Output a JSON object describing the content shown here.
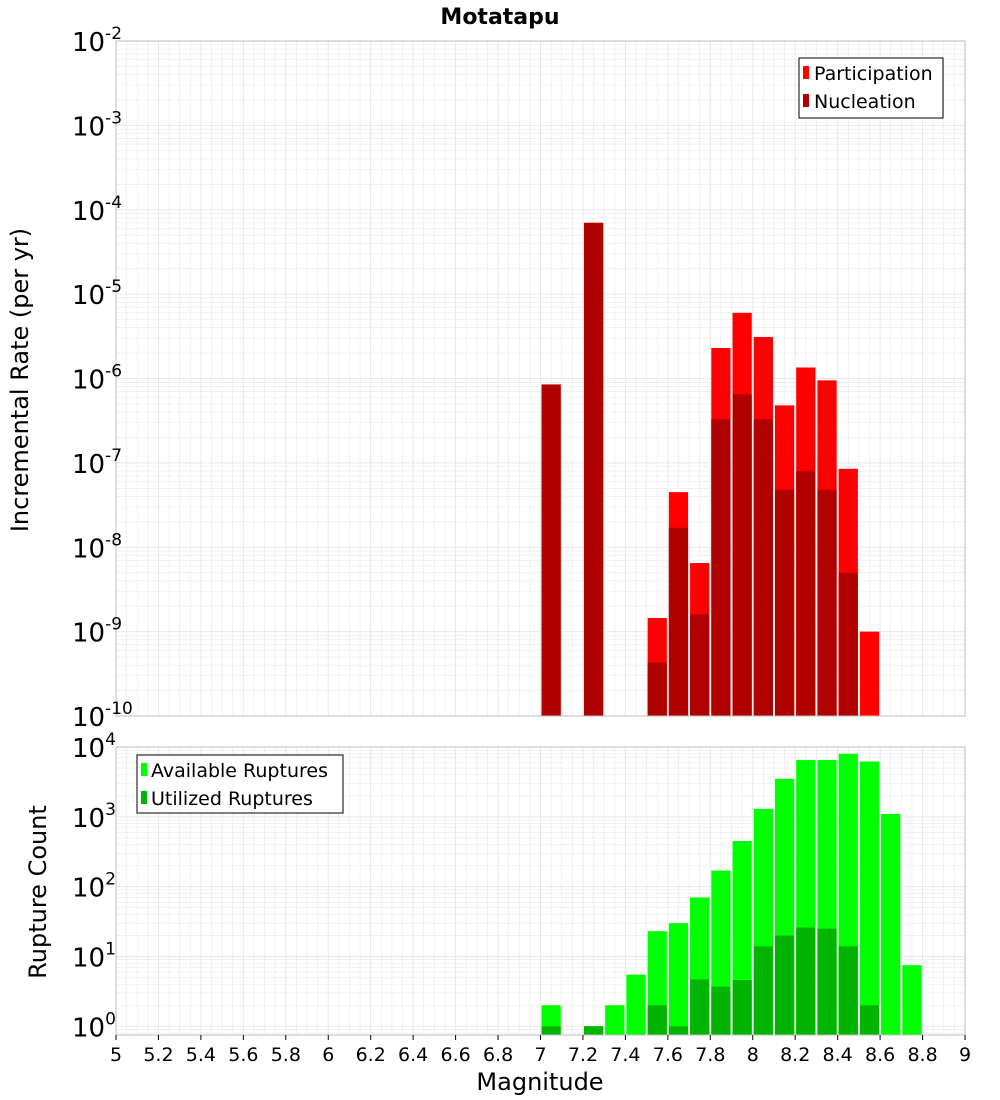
{
  "title": "Motatapu",
  "xlabel": "Magnitude",
  "colors": {
    "participation": "#ff0000",
    "nucleation": "#b00000",
    "available": "#00ff00",
    "utilized": "#00b400",
    "grid": "#e8e8e8",
    "frame": "#bdbdbd"
  },
  "chart_data": [
    {
      "type": "bar",
      "scale": "log",
      "ylabel": "Incremental Rate (per yr)",
      "xlim": [
        5,
        9
      ],
      "ylim": [
        1e-10,
        0.01
      ],
      "y_ticks": [
        {
          "base": "10",
          "exp": "-10"
        },
        {
          "base": "10",
          "exp": "-9"
        },
        {
          "base": "10",
          "exp": "-8"
        },
        {
          "base": "10",
          "exp": "-7"
        },
        {
          "base": "10",
          "exp": "-6"
        },
        {
          "base": "10",
          "exp": "-5"
        },
        {
          "base": "10",
          "exp": "-4"
        },
        {
          "base": "10",
          "exp": "-3"
        },
        {
          "base": "10",
          "exp": "-2"
        }
      ],
      "legend_position": "top-right",
      "grid": true,
      "bin_width": 0.1,
      "series": [
        {
          "name": "Participation",
          "color_key": "participation",
          "points": [
            {
              "x": 7.05,
              "y": 8.5e-07
            },
            {
              "x": 7.25,
              "y": 7e-05
            },
            {
              "x": 7.55,
              "y": 1.45e-09
            },
            {
              "x": 7.65,
              "y": 4.5e-08
            },
            {
              "x": 7.75,
              "y": 6.5e-09
            },
            {
              "x": 7.85,
              "y": 2.3e-06
            },
            {
              "x": 7.95,
              "y": 6e-06
            },
            {
              "x": 8.05,
              "y": 3.1e-06
            },
            {
              "x": 8.15,
              "y": 4.8e-07
            },
            {
              "x": 8.25,
              "y": 1.35e-06
            },
            {
              "x": 8.35,
              "y": 9.5e-07
            },
            {
              "x": 8.45,
              "y": 8.5e-08
            },
            {
              "x": 8.55,
              "y": 1e-09
            }
          ]
        },
        {
          "name": "Nucleation",
          "color_key": "nucleation",
          "points": [
            {
              "x": 7.05,
              "y": 8.5e-07
            },
            {
              "x": 7.25,
              "y": 7e-05
            },
            {
              "x": 7.55,
              "y": 4.3e-10
            },
            {
              "x": 7.65,
              "y": 1.7e-08
            },
            {
              "x": 7.75,
              "y": 1.6e-09
            },
            {
              "x": 7.85,
              "y": 3.3e-07
            },
            {
              "x": 7.95,
              "y": 6.5e-07
            },
            {
              "x": 8.05,
              "y": 3.3e-07
            },
            {
              "x": 8.15,
              "y": 4.8e-08
            },
            {
              "x": 8.25,
              "y": 8e-08
            },
            {
              "x": 8.35,
              "y": 4.8e-08
            },
            {
              "x": 8.45,
              "y": 5e-09
            }
          ]
        }
      ]
    },
    {
      "type": "bar",
      "scale": "log",
      "ylabel": "Rupture Count",
      "xlim": [
        5,
        9
      ],
      "ylim": [
        0.75,
        10000
      ],
      "y_ticks": [
        {
          "value": 1,
          "base": "10",
          "exp": "0"
        },
        {
          "value": 10,
          "base": "10",
          "exp": "1"
        },
        {
          "value": 100,
          "base": "10",
          "exp": "2"
        },
        {
          "value": 1000,
          "base": "10",
          "exp": "3"
        },
        {
          "value": 10000,
          "base": "10",
          "exp": "4"
        }
      ],
      "x_ticks": [
        "5",
        "5.2",
        "5.4",
        "5.6",
        "5.8",
        "6",
        "6.2",
        "6.4",
        "6.6",
        "6.8",
        "7",
        "7.2",
        "7.4",
        "7.6",
        "7.8",
        "8",
        "8.2",
        "8.4",
        "8.6",
        "8.8",
        "9"
      ],
      "legend_position": "top-left",
      "grid": true,
      "bin_width": 0.1,
      "series": [
        {
          "name": "Available Ruptures",
          "color_key": "available",
          "points": [
            {
              "x": 7.05,
              "y": 2
            },
            {
              "x": 7.25,
              "y": 1
            },
            {
              "x": 7.35,
              "y": 2
            },
            {
              "x": 7.45,
              "y": 5.5
            },
            {
              "x": 7.55,
              "y": 23
            },
            {
              "x": 7.65,
              "y": 30
            },
            {
              "x": 7.75,
              "y": 70
            },
            {
              "x": 7.85,
              "y": 170
            },
            {
              "x": 7.95,
              "y": 450
            },
            {
              "x": 8.05,
              "y": 1300
            },
            {
              "x": 8.15,
              "y": 3500
            },
            {
              "x": 8.25,
              "y": 6500
            },
            {
              "x": 8.35,
              "y": 6500
            },
            {
              "x": 8.45,
              "y": 8000
            },
            {
              "x": 8.55,
              "y": 6200
            },
            {
              "x": 8.65,
              "y": 1100
            },
            {
              "x": 8.75,
              "y": 7.5
            }
          ]
        },
        {
          "name": "Utilized Ruptures",
          "color_key": "utilized",
          "points": [
            {
              "x": 7.05,
              "y": 1
            },
            {
              "x": 7.25,
              "y": 1
            },
            {
              "x": 7.55,
              "y": 2
            },
            {
              "x": 7.65,
              "y": 1
            },
            {
              "x": 7.75,
              "y": 4.7
            },
            {
              "x": 7.85,
              "y": 3.7
            },
            {
              "x": 7.95,
              "y": 4.6
            },
            {
              "x": 8.05,
              "y": 14
            },
            {
              "x": 8.15,
              "y": 20
            },
            {
              "x": 8.25,
              "y": 26
            },
            {
              "x": 8.35,
              "y": 25
            },
            {
              "x": 8.45,
              "y": 14
            },
            {
              "x": 8.55,
              "y": 2
            }
          ]
        }
      ]
    }
  ]
}
